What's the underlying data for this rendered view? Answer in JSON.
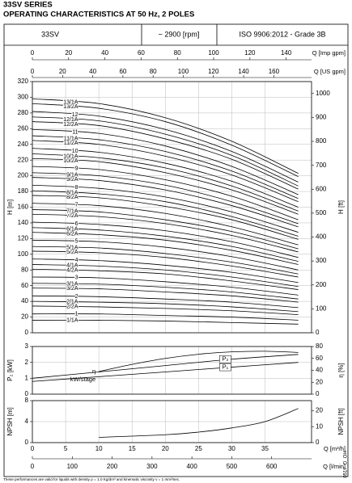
{
  "header": {
    "title": "33SV SERIES",
    "subtitle": "OPERATING CHARACTERISTICS AT 50 Hz, 2 POLES",
    "model": "33SV",
    "speed": "~ 2900 [rpm]",
    "standard": "ISO 9906:2012 - Grade 3B"
  },
  "chart_data": [
    {
      "type": "line",
      "ylabel": "H [m]",
      "y2label": "H [ft]",
      "color": "#000000",
      "grid": true,
      "x": [
        0,
        10,
        20,
        30,
        40
      ],
      "ylim": [
        0,
        320
      ],
      "yticks": [
        0,
        20,
        40,
        60,
        80,
        100,
        120,
        140,
        160,
        180,
        200,
        220,
        240,
        260,
        280,
        300,
        320
      ],
      "y2lim": [
        0,
        1049.9
      ],
      "y2ticks": [
        0,
        100,
        200,
        300,
        400,
        500,
        600,
        700,
        800,
        900,
        1000
      ],
      "x_axes": [
        {
          "label": "Q [Imp gpm]",
          "lim": [
            0,
            154
          ],
          "ticks": [
            0,
            20,
            40,
            60,
            80,
            100,
            120,
            140
          ]
        },
        {
          "label": "Q [US gpm]",
          "lim": [
            0,
            185
          ],
          "ticks": [
            0,
            20,
            40,
            60,
            80,
            100,
            120,
            140,
            160
          ]
        }
      ],
      "series": [
        {
          "name": "1/1A",
          "values": [
            16,
            16,
            15,
            13,
            11
          ]
        },
        {
          "name": "1",
          "values": [
            24,
            24,
            22,
            20,
            16
          ]
        },
        {
          "name": "2/2A",
          "values": [
            34,
            33,
            31,
            28,
            23
          ]
        },
        {
          "name": "2/1A",
          "values": [
            40,
            39,
            37,
            33,
            27
          ]
        },
        {
          "name": "2",
          "values": [
            47,
            46,
            43,
            39,
            32
          ]
        },
        {
          "name": "3/2A",
          "values": [
            57,
            56,
            52,
            47,
            39
          ]
        },
        {
          "name": "3/1A",
          "values": [
            63,
            62,
            58,
            52,
            43
          ]
        },
        {
          "name": "3",
          "values": [
            71,
            70,
            65,
            58,
            48
          ]
        },
        {
          "name": "4/2A",
          "values": [
            81,
            79,
            75,
            66,
            55
          ]
        },
        {
          "name": "4/1A",
          "values": [
            87,
            85,
            80,
            71,
            59
          ]
        },
        {
          "name": "4",
          "values": [
            94,
            92,
            86,
            77,
            64
          ]
        },
        {
          "name": "5/2A",
          "values": [
            104,
            102,
            96,
            85,
            71
          ]
        },
        {
          "name": "5/1A",
          "values": [
            110,
            108,
            101,
            90,
            75
          ]
        },
        {
          "name": "5",
          "values": [
            118,
            116,
            109,
            97,
            80
          ]
        },
        {
          "name": "6/2A",
          "values": [
            128,
            125,
            118,
            105,
            87
          ]
        },
        {
          "name": "6/1A",
          "values": [
            134,
            131,
            123,
            110,
            91
          ]
        },
        {
          "name": "6",
          "values": [
            141,
            138,
            130,
            116,
            96
          ]
        },
        {
          "name": "7/2A",
          "values": [
            151,
            148,
            139,
            124,
            103
          ]
        },
        {
          "name": "7/1A",
          "values": [
            157,
            154,
            144,
            129,
            107
          ]
        },
        {
          "name": "7",
          "values": [
            165,
            162,
            152,
            135,
            112
          ]
        },
        {
          "name": "8/2A",
          "values": [
            175,
            172,
            161,
            144,
            119
          ]
        },
        {
          "name": "8/1A",
          "values": [
            181,
            177,
            167,
            148,
            123
          ]
        },
        {
          "name": "8",
          "values": [
            188,
            184,
            173,
            154,
            128
          ]
        },
        {
          "name": "9/2A",
          "values": [
            198,
            194,
            182,
            162,
            135
          ]
        },
        {
          "name": "9/1A",
          "values": [
            204,
            200,
            188,
            167,
            139
          ]
        },
        {
          "name": "9",
          "values": [
            212,
            208,
            195,
            174,
            144
          ]
        },
        {
          "name": "10/2A",
          "values": [
            222,
            218,
            204,
            182,
            151
          ]
        },
        {
          "name": "10/1A",
          "values": [
            228,
            223,
            210,
            187,
            155
          ]
        },
        {
          "name": "10",
          "values": [
            235,
            230,
            216,
            193,
            160
          ]
        },
        {
          "name": "11/2A",
          "values": [
            245,
            240,
            225,
            201,
            167
          ]
        },
        {
          "name": "11/1A",
          "values": [
            251,
            246,
            231,
            206,
            171
          ]
        },
        {
          "name": "11",
          "values": [
            259,
            254,
            238,
            212,
            176
          ]
        },
        {
          "name": "12/2A",
          "values": [
            269,
            264,
            247,
            221,
            183
          ]
        },
        {
          "name": "12/1A",
          "values": [
            275,
            270,
            253,
            226,
            187
          ]
        },
        {
          "name": "12",
          "values": [
            282,
            276,
            259,
            231,
            192
          ]
        },
        {
          "name": "13/2A",
          "values": [
            292,
            286,
            269,
            239,
            199
          ]
        },
        {
          "name": "13/1A",
          "values": [
            298,
            292,
            274,
            244,
            203
          ]
        }
      ]
    },
    {
      "type": "line",
      "ylabel": "P₂ [kW]",
      "y2label": "η [%]",
      "color": "#000000",
      "grid": true,
      "power_note": "kW/stage",
      "ylim": [
        0,
        3
      ],
      "yticks": [
        0,
        1,
        2,
        3
      ],
      "y2lim": [
        0,
        80
      ],
      "y2ticks": [
        0,
        20,
        40,
        60,
        80
      ],
      "series": [
        {
          "name": "η",
          "axis": "y2",
          "x": [
            10,
            15,
            20,
            25,
            30,
            35,
            40
          ],
          "values": [
            38,
            50,
            60,
            67,
            71,
            72,
            70
          ]
        },
        {
          "name": "P₂",
          "x": [
            0,
            10,
            20,
            30,
            40
          ],
          "values": [
            1.0,
            1.4,
            1.8,
            2.2,
            2.5
          ]
        },
        {
          "name": "P₁",
          "x": [
            0,
            10,
            20,
            30,
            40
          ],
          "values": [
            0.8,
            1.1,
            1.4,
            1.7,
            2.0
          ]
        }
      ]
    },
    {
      "type": "line",
      "ylabel": "NPSH [m]",
      "y2label": "NPSH [ft]",
      "color": "#000000",
      "grid": true,
      "xlabel": "Q [m³/h]",
      "xlim": [
        0,
        42
      ],
      "xticks": [
        0,
        5,
        10,
        15,
        20,
        25,
        30,
        35
      ],
      "x": [
        10,
        20,
        25,
        30,
        35,
        40
      ],
      "values": [
        1.0,
        1.5,
        2.0,
        2.8,
        4.0,
        6.5
      ],
      "ylim": [
        0,
        8
      ],
      "yticks": [
        0,
        4,
        8
      ],
      "y2lim": [
        0,
        26.25
      ],
      "y2ticks": [
        0,
        10,
        20
      ],
      "x_axes": [
        {
          "label": "Q [l/min]",
          "lim": [
            0,
            700
          ],
          "ticks": [
            0,
            100,
            200,
            300,
            400,
            500,
            600
          ]
        }
      ]
    }
  ],
  "footer": {
    "note": "These performances are valid for liquids with density ρ = 1.0 Kg/dm³ and kinematic viscosity ν = 1 mm²/sec.",
    "code": "0517_D_OH"
  }
}
